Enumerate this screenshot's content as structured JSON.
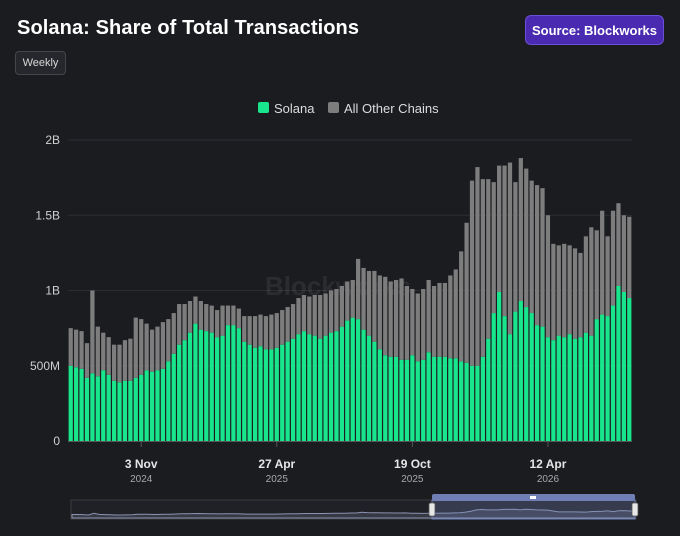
{
  "title": "Solana: Share of Total Transactions",
  "source_label": "Source: Blockworks",
  "interval_label": "Weekly",
  "watermark": "Blockworks",
  "colors": {
    "solana": "#19e68c",
    "other": "#7d7d7d"
  },
  "chart_data": {
    "type": "bar",
    "stacked": true,
    "title": "Solana: Share of Total Transactions",
    "legend": {
      "position": "top-center"
    },
    "ylim": [
      0,
      2000000000
    ],
    "y_ticks": [
      {
        "value": 0,
        "label": "0"
      },
      {
        "value": 500000000,
        "label": "500M"
      },
      {
        "value": 1000000000,
        "label": "1B"
      },
      {
        "value": 1500000000,
        "label": "1.5B"
      },
      {
        "value": 2000000000,
        "label": "2B"
      }
    ],
    "x_ticks": [
      {
        "index": 13,
        "label": "3 Nov",
        "year": "2024"
      },
      {
        "index": 38,
        "label": "27 Apr",
        "year": "2025"
      },
      {
        "index": 63,
        "label": "19 Oct",
        "year": "2025"
      },
      {
        "index": 88,
        "label": "12 Apr",
        "year": "2026"
      }
    ],
    "series": [
      {
        "name": "Solana",
        "values": [
          500,
          490,
          480,
          420,
          450,
          430,
          470,
          440,
          400,
          390,
          400,
          400,
          420,
          440,
          470,
          460,
          470,
          480,
          530,
          580,
          640,
          670,
          720,
          780,
          740,
          730,
          720,
          690,
          700,
          770,
          770,
          750,
          660,
          640,
          620,
          630,
          610,
          610,
          620,
          640,
          660,
          680,
          710,
          730,
          710,
          700,
          680,
          700,
          720,
          730,
          760,
          800,
          820,
          810,
          740,
          700,
          660,
          610,
          570,
          560,
          560,
          540,
          540,
          570,
          530,
          540,
          590,
          560,
          560,
          560,
          550,
          550,
          530,
          520,
          500,
          500,
          560,
          680,
          850,
          990,
          830,
          710,
          860,
          930,
          890,
          850,
          770,
          760,
          690,
          670,
          700,
          690,
          710,
          680,
          690,
          720,
          700,
          810,
          840,
          830,
          900,
          1030,
          990,
          950
        ],
        "unit_scale": 1000000
      },
      {
        "name": "All Other Chains",
        "values": [
          250,
          250,
          250,
          230,
          550,
          330,
          250,
          250,
          240,
          250,
          270,
          280,
          400,
          370,
          310,
          280,
          290,
          310,
          280,
          270,
          270,
          240,
          210,
          180,
          190,
          180,
          180,
          180,
          200,
          130,
          130,
          130,
          170,
          190,
          210,
          210,
          220,
          230,
          230,
          230,
          230,
          230,
          240,
          240,
          250,
          270,
          290,
          280,
          280,
          280,
          270,
          260,
          250,
          400,
          410,
          430,
          470,
          490,
          520,
          500,
          510,
          540,
          490,
          440,
          450,
          470,
          480,
          470,
          490,
          490,
          550,
          590,
          730,
          930,
          1230,
          1320,
          1180,
          1060,
          870,
          840,
          1000,
          1140,
          860,
          950,
          920,
          880,
          930,
          920,
          810,
          640,
          600,
          620,
          590,
          600,
          560,
          640,
          720,
          590,
          690,
          530,
          630,
          550,
          510,
          540
        ]
      }
    ]
  }
}
